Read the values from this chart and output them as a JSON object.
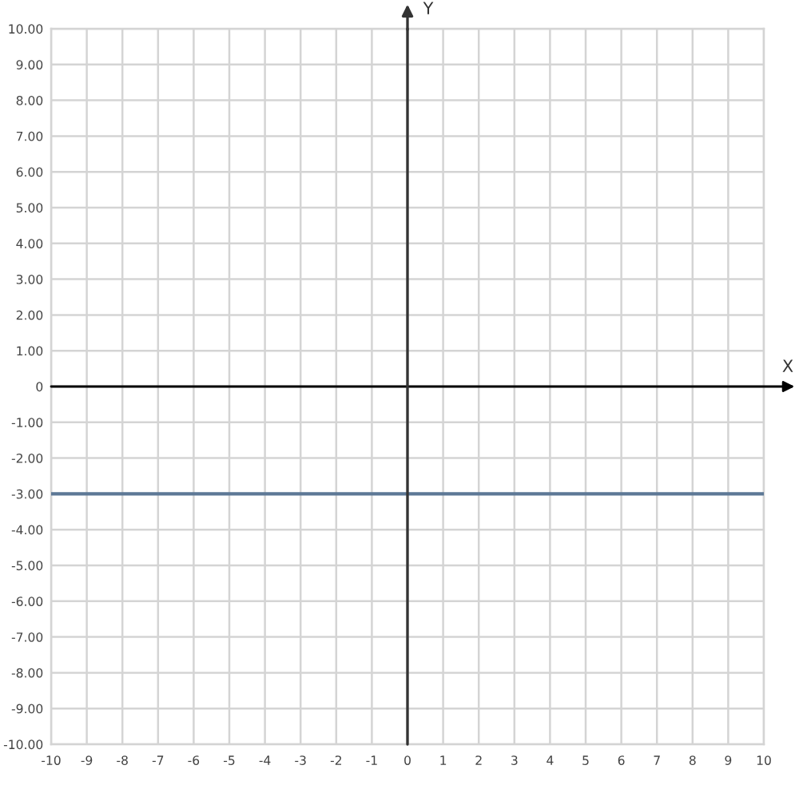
{
  "chart_data": {
    "type": "line",
    "xlabel": "X",
    "ylabel": "Y",
    "x": [
      -10,
      10
    ],
    "series": [
      {
        "color": "#5d7896",
        "values": [
          -3,
          -3
        ]
      }
    ],
    "xlim": [
      -10,
      10
    ],
    "ylim": [
      -10,
      10
    ],
    "xticks": [
      -10,
      -9,
      -8,
      -7,
      -6,
      -5,
      -4,
      -3,
      -2,
      -1,
      0,
      1,
      2,
      3,
      4,
      5,
      6,
      7,
      8,
      9,
      10
    ],
    "yticks": [
      {
        "value": 10,
        "label": "10.00"
      },
      {
        "value": 9,
        "label": "9.00"
      },
      {
        "value": 8,
        "label": "8.00"
      },
      {
        "value": 7,
        "label": "7.00"
      },
      {
        "value": 6,
        "label": "6.00"
      },
      {
        "value": 5,
        "label": "5.00"
      },
      {
        "value": 4,
        "label": "4.00"
      },
      {
        "value": 3,
        "label": "3.00"
      },
      {
        "value": 2,
        "label": "2.00"
      },
      {
        "value": 1,
        "label": "1.00"
      },
      {
        "value": 0,
        "label": "0"
      },
      {
        "value": -1,
        "label": "-1.00"
      },
      {
        "value": -2,
        "label": "-2.00"
      },
      {
        "value": -3,
        "label": "-3.00"
      },
      {
        "value": -4,
        "label": "-4.00"
      },
      {
        "value": -5,
        "label": "-5.00"
      },
      {
        "value": -6,
        "label": "-6.00"
      },
      {
        "value": -7,
        "label": "-7.00"
      },
      {
        "value": -8,
        "label": "-8.00"
      },
      {
        "value": -9,
        "label": "-9.00"
      },
      {
        "value": -10,
        "label": "-10.00"
      }
    ],
    "grid": true
  }
}
